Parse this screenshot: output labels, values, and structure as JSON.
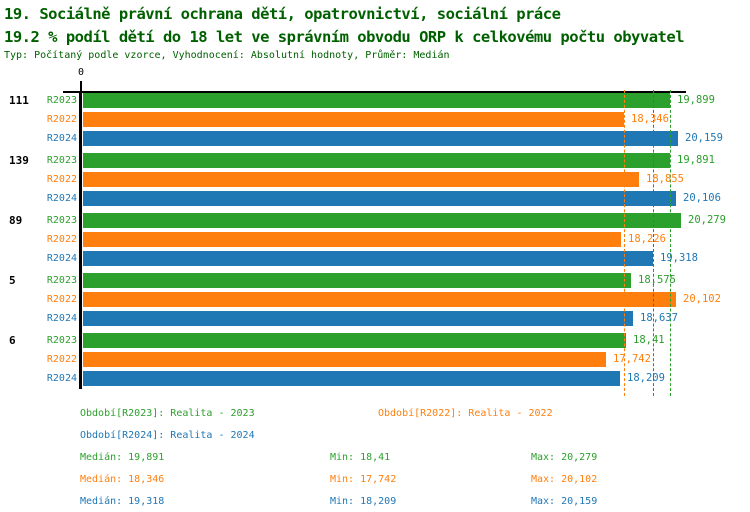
{
  "header": {
    "title_line1": "19. Sociálně právní ochrana dětí, opatrovnictví, sociální práce",
    "title_line2": "19.2 % podíl dětí do 18 let ve správním obvodu ORP k celkovému počtu obyvatel",
    "subtitle": "Typ: Počítaný podle vzorce, Vyhodnocení: Absolutní hodnoty, Průměr: Medián",
    "title_color": "#006000"
  },
  "colors": {
    "green": "#2ca02c",
    "orange": "#ff7f0e",
    "blue": "#1f77b4",
    "axis": "#000000"
  },
  "chart_data": {
    "type": "bar",
    "orientation": "horizontal",
    "grid": "median-lines-only",
    "legend_position": "bottom",
    "x_axis": {
      "zero_label": "0",
      "min": 0,
      "max": 20.65
    },
    "categories": [
      "111",
      "139",
      "89",
      "5",
      "6"
    ],
    "series": [
      {
        "name": "R2023",
        "color": "#2ca02c",
        "values": [
          19.899,
          19.891,
          20.279,
          18.575,
          18.41
        ],
        "value_labels": [
          "19,899",
          "19,891",
          "20,279",
          "18,575",
          "18,41"
        ],
        "median": 19.891,
        "legend_label": "Období[R2023]: Realita - 2023",
        "median_label": "Medián: 19,891",
        "min_label": "Min: 18,41",
        "max_label": "Max: 20,279"
      },
      {
        "name": "R2022",
        "color": "#ff7f0e",
        "values": [
          18.346,
          18.855,
          18.226,
          20.102,
          17.742
        ],
        "value_labels": [
          "18,346",
          "18,855",
          "18,226",
          "20,102",
          "17,742"
        ],
        "median": 18.346,
        "legend_label": "Období[R2022]: Realita - 2022",
        "median_label": "Medián: 18,346",
        "min_label": "Min: 17,742",
        "max_label": "Max: 20,102"
      },
      {
        "name": "R2024",
        "color": "#1f77b4",
        "values": [
          20.159,
          20.106,
          19.318,
          18.637,
          18.209
        ],
        "value_labels": [
          "20,159",
          "20,106",
          "19,318",
          "18,637",
          "18,209"
        ],
        "median": 19.318,
        "legend_label": "Období[R2024]: Realita - 2024",
        "median_label": "Medián: 19,318",
        "min_label": "Min: 18,209",
        "max_label": "Max: 20,159"
      }
    ]
  }
}
